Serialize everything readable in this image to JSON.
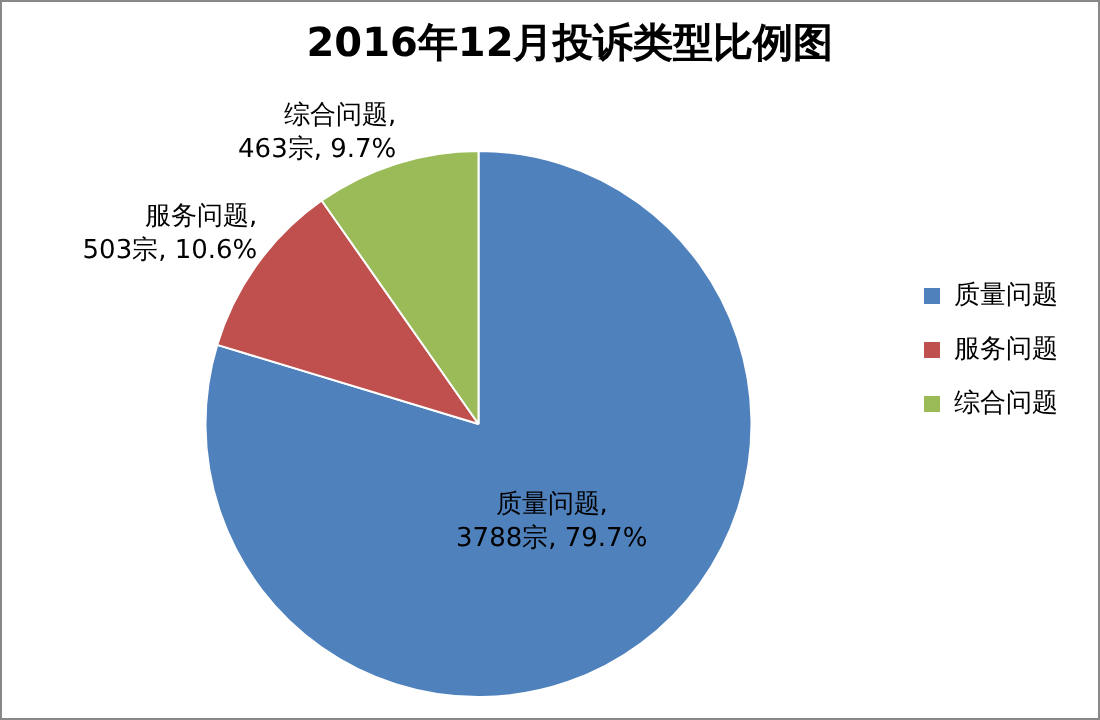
{
  "chart_data": {
    "type": "pie",
    "title": "2016年12月投诉类型比例图",
    "categories": [
      "质量问题",
      "服务问题",
      "综合问题"
    ],
    "values": [
      3788,
      503,
      463
    ],
    "colors": [
      "#4f81bd",
      "#c0504d",
      "#9bbb59"
    ],
    "value_labels": [
      "质量问题,\n3788宗, 79.7%",
      "服务问题,\n503宗, 10.6%",
      "综合问题,\n463宗, 9.7%"
    ],
    "legend": "right"
  }
}
